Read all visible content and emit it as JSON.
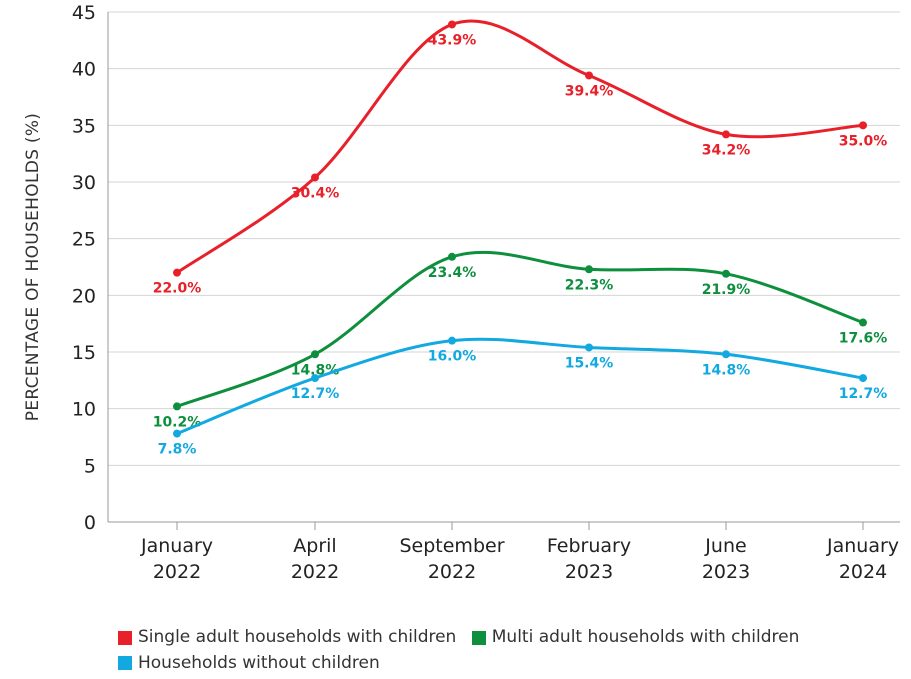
{
  "chart_data": {
    "type": "line",
    "xlabel": "",
    "ylabel": "PERCENTAGE OF HOUSEHOLDS (%)",
    "ylim": [
      0,
      45
    ],
    "yticks": [
      0,
      5,
      10,
      15,
      20,
      25,
      30,
      35,
      40,
      45
    ],
    "grid": "horizontal",
    "legend_position": "bottom",
    "categories": [
      [
        "January",
        "2022"
      ],
      [
        "April",
        "2022"
      ],
      [
        "September",
        "2022"
      ],
      [
        "February",
        "2023"
      ],
      [
        "June",
        "2023"
      ],
      [
        "January",
        "2024"
      ]
    ],
    "series": [
      {
        "name": "Single adult households with children",
        "color": "#e8202a",
        "values": [
          22.0,
          30.4,
          43.9,
          39.4,
          34.2,
          35.0
        ],
        "labels": [
          "22.0%",
          "30.4%",
          "43.9%",
          "39.4%",
          "34.2%",
          "35.0%"
        ]
      },
      {
        "name": "Multi adult households with children",
        "color": "#0e8f3e",
        "values": [
          10.2,
          14.8,
          23.4,
          22.3,
          21.9,
          17.6
        ],
        "labels": [
          "10.2%",
          "14.8%",
          "23.4%",
          "22.3%",
          "21.9%",
          "17.6%"
        ]
      },
      {
        "name": "Households without children",
        "color": "#12a9e0",
        "values": [
          7.8,
          12.7,
          16.0,
          15.4,
          14.8,
          12.7
        ],
        "labels": [
          "7.8%",
          "12.7%",
          "16.0%",
          "15.4%",
          "14.8%",
          "12.7%"
        ]
      }
    ]
  }
}
